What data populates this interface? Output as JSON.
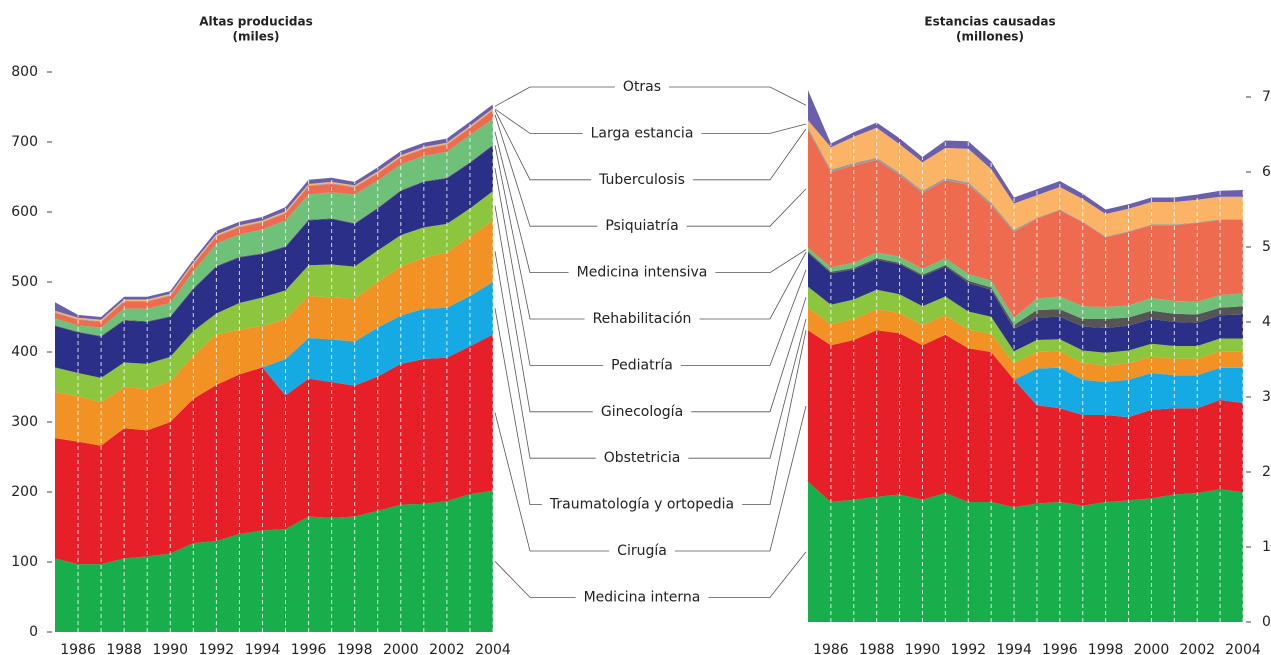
{
  "chart_data": [
    {
      "type": "stacked-area",
      "title": "Altas producidas",
      "subtitle": "(miles)",
      "x": [
        1985,
        1986,
        1987,
        1988,
        1989,
        1990,
        1991,
        1992,
        1993,
        1994,
        1995,
        1996,
        1997,
        1998,
        1999,
        2000,
        2001,
        2002,
        2003,
        2004
      ],
      "xlim": [
        1985,
        2004
      ],
      "xticks": [
        1986,
        1988,
        1990,
        1992,
        1994,
        1996,
        1998,
        2000,
        2002,
        2004
      ],
      "ylim": [
        0,
        800
      ],
      "yticks": [
        0,
        100,
        200,
        300,
        400,
        500,
        600,
        700,
        800
      ],
      "y_axis_side": "left",
      "series": [
        {
          "name": "Medicina interna",
          "color": "#17ae4b",
          "values": [
            105,
            97,
            97,
            105,
            108,
            112,
            127,
            130,
            140,
            145,
            147,
            165,
            163,
            165,
            173,
            182,
            183,
            187,
            197,
            202
          ]
        },
        {
          "name": "Cirugía",
          "color": "#e61f28",
          "values": [
            172,
            175,
            169,
            186,
            180,
            188,
            206,
            223,
            228,
            233,
            191,
            197,
            194,
            187,
            192,
            201,
            207,
            205,
            211,
            223
          ]
        },
        {
          "name": "Traumatología y ortopedia",
          "color": "#16aae4",
          "values": [
            0,
            0,
            0,
            0,
            0,
            0,
            0,
            0,
            0,
            0,
            52,
            58,
            61,
            63,
            70,
            69,
            72,
            71,
            72,
            75
          ]
        },
        {
          "name": "Obstetricia",
          "color": "#f39224",
          "values": [
            66,
            65,
            62,
            59,
            59,
            58,
            62,
            72,
            64,
            59,
            57,
            60,
            60,
            61,
            65,
            70,
            73,
            79,
            85,
            88
          ]
        },
        {
          "name": "Ginecología",
          "color": "#8cc63f",
          "values": [
            35,
            33,
            35,
            35,
            36,
            35,
            35,
            30,
            38,
            41,
            41,
            44,
            47,
            46,
            45,
            45,
            43,
            41,
            40,
            42
          ]
        },
        {
          "name": "Pediatría",
          "color": "#2b2f87",
          "values": [
            59,
            58,
            59,
            60,
            60,
            57,
            60,
            67,
            65,
            62,
            62,
            64,
            65,
            61,
            60,
            63,
            65,
            65,
            65,
            65
          ]
        },
        {
          "name": "Rehabilitación",
          "color": "#555555",
          "values": [
            1,
            1,
            1,
            1,
            1,
            1,
            1,
            1,
            1,
            1,
            1,
            1,
            1,
            1,
            1,
            1,
            1,
            1,
            1,
            1
          ]
        },
        {
          "name": "Medicina intensiva",
          "color": "#6fc17a",
          "values": [
            10,
            9,
            12,
            16,
            18,
            19,
            24,
            32,
            32,
            34,
            37,
            36,
            37,
            41,
            39,
            37,
            36,
            37,
            39,
            37
          ]
        },
        {
          "name": "Psiquiatría",
          "color": "#ef6b50",
          "values": [
            8,
            8,
            8,
            10,
            10,
            10,
            10,
            10,
            10,
            10,
            10,
            12,
            12,
            10,
            10,
            10,
            10,
            10,
            10,
            12
          ]
        },
        {
          "name": "Tuberculosis",
          "color": "#9a9a9a",
          "values": [
            1,
            1,
            1,
            1,
            1,
            1,
            1,
            1,
            1,
            1,
            1,
            1,
            1,
            1,
            1,
            1,
            1,
            1,
            1,
            1
          ]
        },
        {
          "name": "Larga estancia",
          "color": "#fbb465",
          "values": [
            2,
            2,
            2,
            2,
            2,
            2,
            2,
            2,
            2,
            2,
            2,
            2,
            2,
            2,
            2,
            2,
            2,
            2,
            2,
            2
          ]
        },
        {
          "name": "Otras",
          "color": "#6a5fad",
          "values": [
            12,
            4,
            4,
            4,
            4,
            4,
            4,
            5,
            5,
            5,
            6,
            6,
            6,
            5,
            6,
            6,
            6,
            6,
            6,
            6
          ]
        }
      ]
    },
    {
      "type": "stacked-area",
      "title": "Estancias causadas",
      "subtitle": "(millones)",
      "x": [
        1985,
        1986,
        1987,
        1988,
        1989,
        1990,
        1991,
        1992,
        1993,
        1994,
        1995,
        1996,
        1997,
        1998,
        1999,
        2000,
        2001,
        2002,
        2003,
        2004
      ],
      "xlim": [
        1985,
        2004
      ],
      "xticks": [
        1986,
        1988,
        1990,
        1992,
        1994,
        1996,
        1998,
        2000,
        2002,
        2004
      ],
      "ylim": [
        0,
        7
      ],
      "yticks": [
        0,
        1,
        2,
        3,
        4,
        5,
        6,
        7
      ],
      "y_axis_side": "right",
      "series": [
        {
          "name": "Medicina interna",
          "color": "#17ae4b",
          "values": [
            1.87,
            1.6,
            1.63,
            1.67,
            1.7,
            1.63,
            1.72,
            1.6,
            1.6,
            1.53,
            1.58,
            1.6,
            1.55,
            1.6,
            1.62,
            1.65,
            1.7,
            1.72,
            1.77,
            1.73
          ]
        },
        {
          "name": "Cirugía",
          "color": "#e61f28",
          "values": [
            2.02,
            2.09,
            2.13,
            2.22,
            2.15,
            2.06,
            2.11,
            2.05,
            2.0,
            1.7,
            1.31,
            1.25,
            1.21,
            1.16,
            1.11,
            1.18,
            1.15,
            1.13,
            1.19,
            1.19
          ]
        },
        {
          "name": "Traumatología y ortopedia",
          "color": "#16aae4",
          "values": [
            0,
            0,
            0,
            0,
            0,
            0,
            0,
            0,
            0,
            0,
            0.49,
            0.54,
            0.47,
            0.44,
            0.5,
            0.49,
            0.44,
            0.44,
            0.43,
            0.47
          ]
        },
        {
          "name": "Obstetricia",
          "color": "#f39224",
          "values": [
            0.3,
            0.28,
            0.28,
            0.28,
            0.27,
            0.27,
            0.26,
            0.25,
            0.24,
            0.22,
            0.22,
            0.22,
            0.22,
            0.22,
            0.22,
            0.22,
            0.22,
            0.22,
            0.22,
            0.22
          ]
        },
        {
          "name": "Ginecología",
          "color": "#8cc63f",
          "values": [
            0.28,
            0.26,
            0.26,
            0.26,
            0.25,
            0.25,
            0.25,
            0.24,
            0.23,
            0.16,
            0.16,
            0.16,
            0.17,
            0.17,
            0.17,
            0.17,
            0.17,
            0.17,
            0.17,
            0.17
          ]
        },
        {
          "name": "Pediatría",
          "color": "#2b2f87",
          "values": [
            0.45,
            0.42,
            0.4,
            0.4,
            0.4,
            0.4,
            0.4,
            0.38,
            0.36,
            0.3,
            0.3,
            0.3,
            0.32,
            0.33,
            0.33,
            0.33,
            0.32,
            0.31,
            0.31,
            0.32
          ]
        },
        {
          "name": "Rehabilitación",
          "color": "#555555",
          "values": [
            0.02,
            0.02,
            0.02,
            0.02,
            0.02,
            0.02,
            0.02,
            0.03,
            0.03,
            0.05,
            0.1,
            0.1,
            0.1,
            0.12,
            0.11,
            0.11,
            0.11,
            0.11,
            0.1,
            0.11
          ]
        },
        {
          "name": "Medicina intensiva",
          "color": "#6fc17a",
          "values": [
            0.05,
            0.06,
            0.07,
            0.08,
            0.08,
            0.08,
            0.09,
            0.09,
            0.09,
            0.1,
            0.15,
            0.17,
            0.17,
            0.16,
            0.16,
            0.17,
            0.17,
            0.17,
            0.17,
            0.17
          ]
        },
        {
          "name": "Psiquiatría",
          "color": "#ef6b50",
          "values": [
            1.57,
            1.27,
            1.3,
            1.23,
            1.09,
            1.01,
            1.04,
            1.19,
            1.01,
            1.14,
            1.07,
            1.15,
            1.12,
            0.93,
            0.98,
            0.97,
            1.01,
            1.05,
            1.0,
            0.98
          ]
        },
        {
          "name": "Tuberculosis",
          "color": "#9a9a9a",
          "values": [
            0.03,
            0.03,
            0.03,
            0.03,
            0.03,
            0.03,
            0.03,
            0.03,
            0.03,
            0.03,
            0.01,
            0.01,
            0.01,
            0.01,
            0.01,
            0.01,
            0.01,
            0.01,
            0.01,
            0.01
          ]
        },
        {
          "name": "Larga estancia",
          "color": "#fbb465",
          "values": [
            0.1,
            0.3,
            0.35,
            0.4,
            0.38,
            0.38,
            0.4,
            0.45,
            0.45,
            0.35,
            0.3,
            0.3,
            0.3,
            0.3,
            0.3,
            0.3,
            0.3,
            0.3,
            0.3,
            0.3
          ]
        },
        {
          "name": "Otras",
          "color": "#6a5fad",
          "values": [
            0.4,
            0.05,
            0.06,
            0.07,
            0.08,
            0.07,
            0.1,
            0.1,
            0.1,
            0.08,
            0.08,
            0.08,
            0.07,
            0.06,
            0.06,
            0.06,
            0.06,
            0.07,
            0.08,
            0.09
          ]
        }
      ]
    }
  ]
}
